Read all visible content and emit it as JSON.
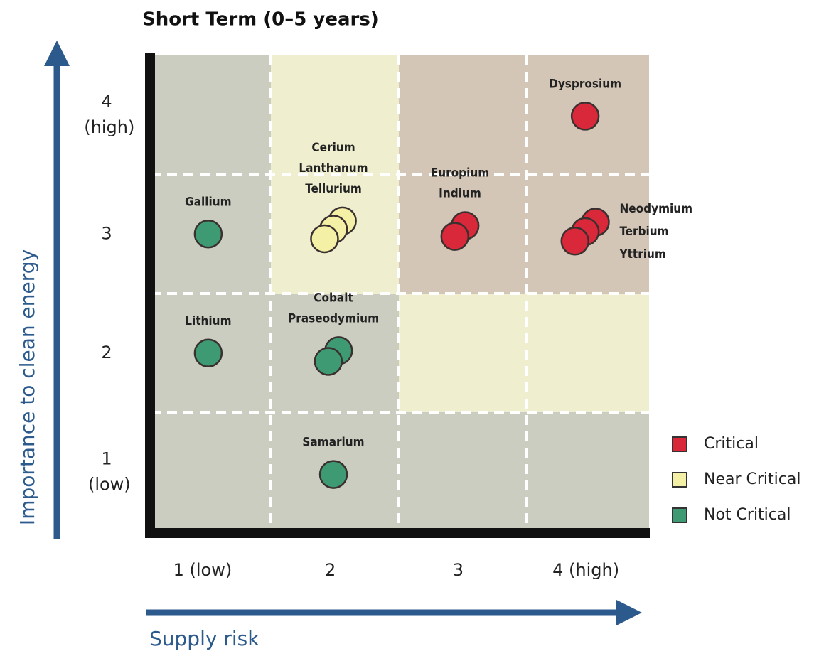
{
  "chart_data": {
    "type": "scatter",
    "title": "Short Term (0–5 years)",
    "xlabel": "Supply risk",
    "ylabel": "Importance to clean energy",
    "xlim": [
      0.55,
      4.45
    ],
    "ylim": [
      0.5,
      4.5
    ],
    "xticks": [
      {
        "value": 1,
        "label": "1 (low)"
      },
      2,
      3,
      {
        "value": 4,
        "label": "4 (high)"
      }
    ],
    "yticks": [
      {
        "value": 1,
        "label": "1 (low)"
      },
      2,
      3,
      {
        "value": 4,
        "label": "4 (high)"
      }
    ],
    "legend": "lower right",
    "series": [
      {
        "name": "Critical",
        "color": "#d8283a",
        "labels": [
          "Europium",
          "Indium",
          "Dysprosium",
          "Neodymium",
          "Terbium",
          "Yttrium"
        ],
        "x": [
          2.93,
          3.01,
          3.95,
          3.87,
          3.95,
          4.03
        ],
        "values": [
          2.98,
          3.07,
          3.99,
          2.94,
          3.02,
          3.1
        ]
      },
      {
        "name": "Near Critical",
        "color": "#f4f1a6",
        "labels": [
          "Cerium",
          "Lanthanum",
          "Tellurium"
        ],
        "x": [
          1.91,
          1.98,
          2.05
        ],
        "values": [
          2.96,
          3.04,
          3.11
        ]
      },
      {
        "name": "Not Critical",
        "color": "#3d9a72",
        "labels": [
          "Gallium",
          "Lithium",
          "Cobalt",
          "Praseodymium",
          "Samarium"
        ],
        "x": [
          1,
          1,
          1.94,
          2.02,
          1.98
        ],
        "values": [
          3,
          2,
          1.93,
          2.02,
          0.98
        ]
      }
    ]
  }
}
